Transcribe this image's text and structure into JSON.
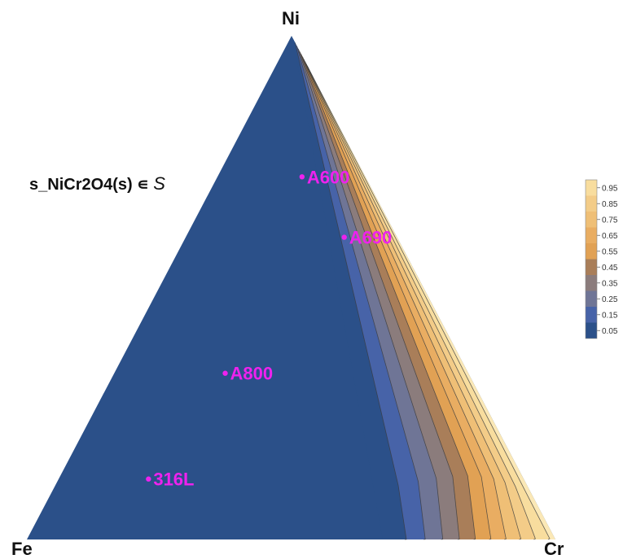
{
  "chart_data": {
    "type": "ternary-contour",
    "vertices": {
      "top": "Ni",
      "left": "Fe",
      "right": "Cr"
    },
    "annotation": {
      "text": "s_NiCr2O4(s) ∊ ",
      "symbol": "S"
    },
    "contour_levels": [
      0.0,
      0.1,
      0.2,
      0.3,
      0.4,
      0.5,
      0.6,
      0.7,
      0.8,
      0.9,
      1.0
    ],
    "band_colors": [
      "#2b5089",
      "#4763a8",
      "#6f7596",
      "#8b7c7c",
      "#a97e59",
      "#e1a154",
      "#e9ad62",
      "#efbf76",
      "#f3cc88",
      "#f8dd9e"
    ],
    "legend": {
      "labels": [
        "0.95",
        "0.85",
        "0.75",
        "0.65",
        "0.55",
        "0.45",
        "0.35",
        "0.25",
        "0.15",
        "0.05"
      ],
      "placement": "right"
    },
    "points": [
      {
        "name": "A600",
        "Ni": 0.72,
        "Cr": 0.16,
        "Fe": 0.12
      },
      {
        "name": "A690",
        "Ni": 0.6,
        "Cr": 0.3,
        "Fe": 0.1
      },
      {
        "name": "A800",
        "Ni": 0.33,
        "Cr": 0.21,
        "Fe": 0.46
      },
      {
        "name": "316L",
        "Ni": 0.12,
        "Cr": 0.17,
        "Fe": 0.71
      }
    ],
    "point_color": "#ee22ee"
  }
}
